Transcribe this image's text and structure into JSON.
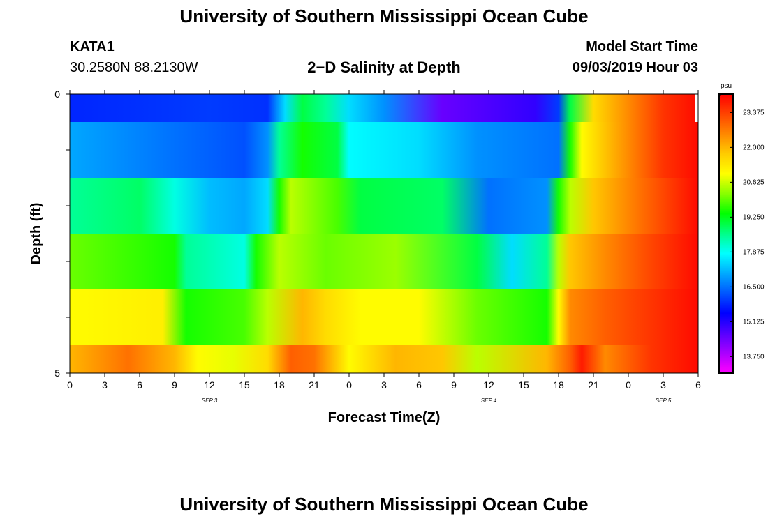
{
  "header": {
    "title": "University of Southern Mississippi Ocean Cube",
    "station": "KATA1",
    "coords": "30.2580N 88.2130W",
    "plot_title": "2−D Salinity at Depth",
    "model_start_label": "Model Start Time",
    "model_start_value": "09/03/2019 Hour 03"
  },
  "footer": {
    "title": "University of Southern Mississippi Ocean Cube"
  },
  "chart_data": {
    "type": "heatmap",
    "title": "2−D Salinity at Depth",
    "xlabel": "Forecast Time(Z)",
    "ylabel": "Depth (ft)",
    "x_tick_labels": [
      "0",
      "3",
      "6",
      "9",
      "12",
      "15",
      "18",
      "21",
      "0",
      "3",
      "6",
      "9",
      "12",
      "15",
      "18",
      "21",
      "0",
      "3",
      "6"
    ],
    "x_hours": [
      0,
      3,
      6,
      9,
      12,
      15,
      18,
      21,
      24,
      27,
      30,
      33,
      36,
      39,
      42,
      45,
      48,
      51,
      54
    ],
    "day_labels": [
      {
        "text": "SEP 3",
        "at_hour": 12
      },
      {
        "text": "SEP 4",
        "at_hour": 36
      },
      {
        "text": "SEP 5",
        "at_hour": 51
      }
    ],
    "y_tick_labels": [
      "0",
      "5"
    ],
    "ylim": [
      0,
      5
    ],
    "xlim": [
      0,
      54
    ],
    "colorbar": {
      "unit": "psu",
      "ticks": [
        "23.375",
        "22.000",
        "20.625",
        "19.250",
        "17.875",
        "16.500",
        "15.125",
        "13.750"
      ],
      "range": [
        13.1,
        24.1
      ]
    },
    "colors": [
      "#ff00ff",
      "#aa00ff",
      "#5500ff",
      "#0000ff",
      "#0055ff",
      "#00aaff",
      "#00ffff",
      "#00ff88",
      "#00ff00",
      "#88ff00",
      "#ffff00",
      "#ffcc00",
      "#ff8800",
      "#ff4400",
      "#ff0000"
    ],
    "layers": [
      {
        "depth_top": 0.0,
        "depth_bottom": 0.5,
        "keys": [
          [
            0,
            15.8
          ],
          [
            12,
            16.0
          ],
          [
            17,
            15.9
          ],
          [
            18.5,
            17.5
          ],
          [
            20,
            19.0
          ],
          [
            22,
            18.5
          ],
          [
            24,
            17.5
          ],
          [
            27,
            16.8
          ],
          [
            32,
            14.5
          ],
          [
            40,
            15.0
          ],
          [
            42,
            16.0
          ],
          [
            43,
            19.0
          ],
          [
            45,
            21.5
          ],
          [
            48,
            22.5
          ],
          [
            51,
            23.5
          ],
          [
            54,
            24.0
          ]
        ]
      },
      {
        "depth_top": 0.5,
        "depth_bottom": 1.5,
        "keys": [
          [
            0,
            17.0
          ],
          [
            9,
            16.5
          ],
          [
            15,
            16.2
          ],
          [
            17,
            16.8
          ],
          [
            18,
            18.5
          ],
          [
            20,
            19.5
          ],
          [
            23,
            19.0
          ],
          [
            24,
            17.8
          ],
          [
            30,
            17.5
          ],
          [
            35,
            16.8
          ],
          [
            42,
            16.5
          ],
          [
            43,
            19.5
          ],
          [
            44,
            21.0
          ],
          [
            48,
            22.5
          ],
          [
            51,
            23.5
          ],
          [
            54,
            24.0
          ]
        ]
      },
      {
        "depth_top": 1.5,
        "depth_bottom": 2.5,
        "keys": [
          [
            0,
            18.5
          ],
          [
            6,
            18.8
          ],
          [
            9,
            18.0
          ],
          [
            12,
            17.2
          ],
          [
            15,
            17.0
          ],
          [
            17,
            17.5
          ],
          [
            18,
            19.5
          ],
          [
            19,
            20.5
          ],
          [
            23,
            19.8
          ],
          [
            25,
            19.0
          ],
          [
            32,
            18.8
          ],
          [
            36,
            16.5
          ],
          [
            41,
            16.8
          ],
          [
            42,
            19.5
          ],
          [
            43,
            20.5
          ],
          [
            45,
            21.8
          ],
          [
            49,
            22.8
          ],
          [
            54,
            24.0
          ]
        ]
      },
      {
        "depth_top": 2.5,
        "depth_bottom": 3.5,
        "keys": [
          [
            0,
            20.0
          ],
          [
            9,
            19.5
          ],
          [
            10,
            18.5
          ],
          [
            15,
            18.0
          ],
          [
            16,
            19.5
          ],
          [
            18,
            20.5
          ],
          [
            22,
            20.0
          ],
          [
            28,
            20.3
          ],
          [
            35,
            19.0
          ],
          [
            38,
            17.5
          ],
          [
            41,
            18.5
          ],
          [
            42,
            20.5
          ],
          [
            43,
            21.8
          ],
          [
            46,
            22.5
          ],
          [
            50,
            23.3
          ],
          [
            54,
            24.0
          ]
        ]
      },
      {
        "depth_top": 3.5,
        "depth_bottom": 4.5,
        "keys": [
          [
            0,
            21.0
          ],
          [
            8,
            21.2
          ],
          [
            10,
            19.5
          ],
          [
            15,
            19.8
          ],
          [
            17,
            20.5
          ],
          [
            20,
            22.0
          ],
          [
            22,
            21.5
          ],
          [
            25,
            21.0
          ],
          [
            30,
            21.0
          ],
          [
            35,
            20.0
          ],
          [
            41,
            19.5
          ],
          [
            42,
            21.0
          ],
          [
            43,
            22.5
          ],
          [
            46,
            23.0
          ],
          [
            50,
            23.5
          ],
          [
            54,
            24.0
          ]
        ]
      },
      {
        "depth_top": 4.5,
        "depth_bottom": 5.0,
        "keys": [
          [
            0,
            22.0
          ],
          [
            5,
            22.8
          ],
          [
            9,
            22.0
          ],
          [
            11,
            21.0
          ],
          [
            14,
            20.8
          ],
          [
            17,
            21.5
          ],
          [
            19,
            23.0
          ],
          [
            21,
            22.8
          ],
          [
            24,
            21.0
          ],
          [
            28,
            22.0
          ],
          [
            32,
            21.8
          ],
          [
            35,
            20.5
          ],
          [
            41,
            22.0
          ],
          [
            43,
            23.0
          ],
          [
            44,
            23.8
          ],
          [
            46,
            22.5
          ],
          [
            50,
            23.5
          ],
          [
            54,
            24.0
          ]
        ]
      }
    ]
  }
}
